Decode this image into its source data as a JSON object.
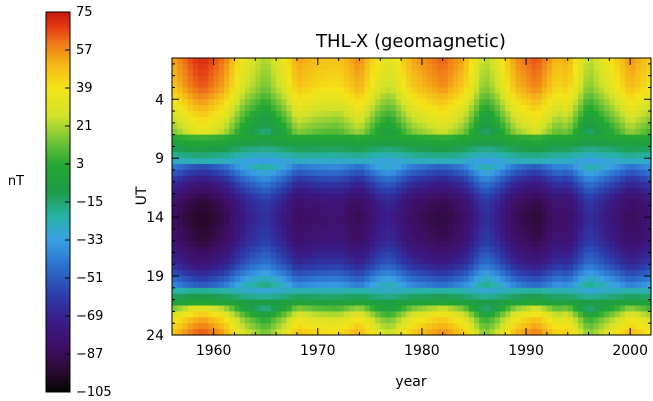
{
  "chart_data": {
    "type": "heatmap",
    "title": "THL-X (geomagnetic)",
    "xlabel": "year",
    "ylabel": "UT",
    "xlim": [
      1956,
      2002
    ],
    "ylim": [
      24,
      0.5
    ],
    "x_ticks": [
      1960,
      1970,
      1980,
      1990,
      2000
    ],
    "y_ticks": [
      4,
      9,
      14,
      19,
      24
    ],
    "colorbar": {
      "label": "nT",
      "range": [
        -105,
        75
      ],
      "ticks": [
        75,
        57,
        39,
        21,
        3,
        -15,
        -33,
        -51,
        -69,
        -87,
        -105
      ],
      "stops": [
        {
          "v": -105,
          "c": "#050505"
        },
        {
          "v": -95,
          "c": "#2a0a30"
        },
        {
          "v": -85,
          "c": "#3e0e62"
        },
        {
          "v": -72,
          "c": "#3a1a86"
        },
        {
          "v": -60,
          "c": "#2c3aa8"
        },
        {
          "v": -45,
          "c": "#2c72d0"
        },
        {
          "v": -33,
          "c": "#3aa0e4"
        },
        {
          "v": -22,
          "c": "#28b2a8"
        },
        {
          "v": -10,
          "c": "#1e9c48"
        },
        {
          "v": 3,
          "c": "#24a832"
        },
        {
          "v": 15,
          "c": "#7cc838"
        },
        {
          "v": 26,
          "c": "#d2e22a"
        },
        {
          "v": 39,
          "c": "#f4e418"
        },
        {
          "v": 50,
          "c": "#f5b818"
        },
        {
          "v": 60,
          "c": "#ef7a18"
        },
        {
          "v": 68,
          "c": "#e23a14"
        },
        {
          "v": 75,
          "c": "#c81810"
        }
      ]
    },
    "ut_profile": [
      {
        "ut": 0.5,
        "v": 45
      },
      {
        "ut": 3,
        "v": 38
      },
      {
        "ut": 5,
        "v": 22
      },
      {
        "ut": 7,
        "v": 5
      },
      {
        "ut": 9,
        "v": -25
      },
      {
        "ut": 11,
        "v": -58
      },
      {
        "ut": 12.5,
        "v": -75
      },
      {
        "ut": 14,
        "v": -80
      },
      {
        "ut": 16,
        "v": -75
      },
      {
        "ut": 18,
        "v": -60
      },
      {
        "ut": 20,
        "v": -30
      },
      {
        "ut": 21.5,
        "v": 0
      },
      {
        "ut": 22.5,
        "v": 25
      },
      {
        "ut": 24,
        "v": 40
      }
    ],
    "year_activity": [
      {
        "year": 1956,
        "a": 0.7
      },
      {
        "year": 1958,
        "a": 1.1
      },
      {
        "year": 1959,
        "a": 1.2
      },
      {
        "year": 1961,
        "a": 0.9
      },
      {
        "year": 1963,
        "a": 0.2
      },
      {
        "year": 1965,
        "a": -0.15
      },
      {
        "year": 1967,
        "a": 0.35
      },
      {
        "year": 1968,
        "a": 0.75
      },
      {
        "year": 1970,
        "a": 0.6
      },
      {
        "year": 1972,
        "a": 0.55
      },
      {
        "year": 1974,
        "a": 0.85
      },
      {
        "year": 1976,
        "a": 0.25
      },
      {
        "year": 1977,
        "a": 0.15
      },
      {
        "year": 1979,
        "a": 0.7
      },
      {
        "year": 1982,
        "a": 1.0
      },
      {
        "year": 1984,
        "a": 0.7
      },
      {
        "year": 1986,
        "a": -0.1
      },
      {
        "year": 1987,
        "a": 0.1
      },
      {
        "year": 1989,
        "a": 0.8
      },
      {
        "year": 1991,
        "a": 1.05
      },
      {
        "year": 1993,
        "a": 0.6
      },
      {
        "year": 1994,
        "a": 0.7
      },
      {
        "year": 1996,
        "a": -0.1
      },
      {
        "year": 1997,
        "a": 0.1
      },
      {
        "year": 1999,
        "a": 0.55
      },
      {
        "year": 2000,
        "a": 0.8
      },
      {
        "year": 2002,
        "a": 0.5
      }
    ]
  }
}
